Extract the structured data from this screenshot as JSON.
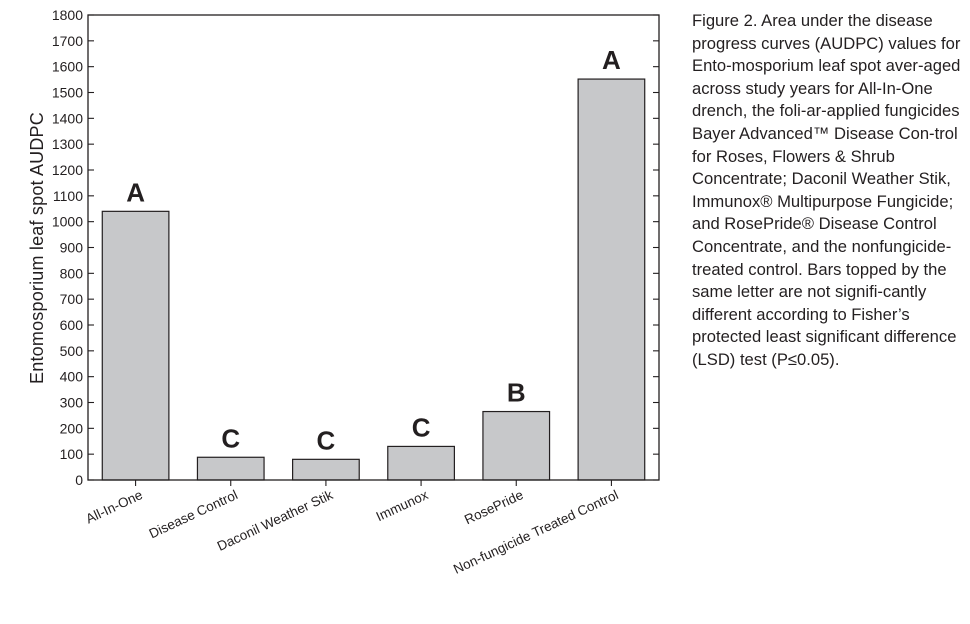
{
  "caption": "Figure 2. Area under the disease progress curves (AUDPC) values for Ento-mosporium leaf spot aver-aged across study years for All-In-One drench, the foli-ar-applied fungicides Bayer Advanced™ Disease Con-trol for Roses, Flowers & Shrub Concentrate; Daconil Weather Stik, Immunox® Multipurpose Fungicide; and RosePride® Disease Control Concentrate, and the nonfungicide-treated control. Bars topped by the same letter are not signifi-cantly different according to Fisher’s protected least significant difference (LSD) test (P≤0.05).",
  "chart_data": {
    "type": "bar",
    "title": "",
    "xlabel": "",
    "ylabel": "Entomosporium leaf spot AUDPC",
    "ylim": [
      0,
      1800
    ],
    "yticks": [
      0,
      100,
      200,
      300,
      400,
      500,
      600,
      700,
      800,
      900,
      1000,
      1100,
      1200,
      1300,
      1400,
      1500,
      1600,
      1700,
      1800
    ],
    "grid": false,
    "categories": [
      "All-In-One",
      "Disease Control",
      "Daconil Weather Stik",
      "Immunox",
      "RosePride",
      "Non-fungicide Treated Control"
    ],
    "values": [
      1040,
      88,
      80,
      130,
      265,
      1552
    ],
    "annotations": [
      "A",
      "C",
      "C",
      "C",
      "B",
      "A"
    ]
  }
}
